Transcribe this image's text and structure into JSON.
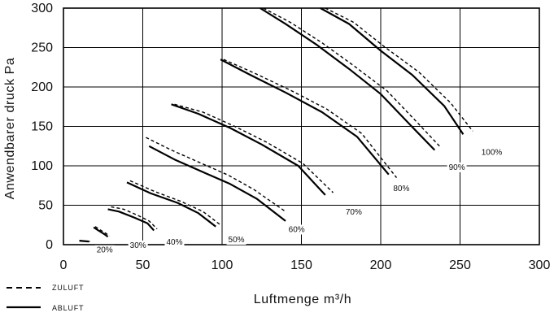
{
  "chart_data": {
    "type": "line",
    "xlabel": "Luftmenge m³/h",
    "ylabel": "Anwendbarer druck Pa",
    "xlim": [
      0,
      300
    ],
    "ylim": [
      0,
      300
    ],
    "xticks": [
      "0",
      "50",
      "100",
      "150",
      "200",
      "250",
      "300"
    ],
    "yticks": [
      "0",
      "50",
      "100",
      "150",
      "200",
      "250",
      "300"
    ],
    "grid": true,
    "legend_position": "bottom-left",
    "legend": [
      {
        "label": "ZULUFT",
        "style": "dashed"
      },
      {
        "label": "ABLUFT",
        "style": "solid"
      }
    ],
    "curves": [
      {
        "label": "20%",
        "label_pos": [
          26,
          -10
        ],
        "abluft": [
          [
            10,
            5
          ],
          [
            16,
            4
          ]
        ],
        "zuluft": [
          [
            11,
            5
          ],
          [
            17,
            4
          ]
        ]
      },
      {
        "label": "",
        "label_pos": null,
        "abluft": [
          [
            19,
            22
          ],
          [
            22,
            18
          ],
          [
            26,
            13
          ],
          [
            28,
            10
          ]
        ],
        "zuluft": [
          [
            20,
            23
          ],
          [
            23,
            19
          ],
          [
            27,
            14
          ],
          [
            29,
            11
          ]
        ]
      },
      {
        "label": "30%",
        "label_pos": [
          47,
          -4
        ],
        "abluft": [
          [
            28,
            45
          ],
          [
            35,
            42
          ],
          [
            45,
            34
          ],
          [
            53,
            27
          ],
          [
            57,
            18
          ]
        ],
        "zuluft": [
          [
            30,
            48
          ],
          [
            38,
            45
          ],
          [
            47,
            37
          ],
          [
            54,
            30
          ],
          [
            59,
            20
          ]
        ]
      },
      {
        "label": "40%",
        "label_pos": [
          70,
          0
        ],
        "abluft": [
          [
            40,
            79
          ],
          [
            55,
            65
          ],
          [
            72,
            53
          ],
          [
            85,
            40
          ],
          [
            96,
            23
          ]
        ],
        "zuluft": [
          [
            42,
            81
          ],
          [
            58,
            67
          ],
          [
            74,
            55
          ],
          [
            88,
            42
          ],
          [
            99,
            25
          ]
        ]
      },
      {
        "label": "50%",
        "label_pos": [
          109,
          3
        ],
        "abluft": [
          [
            54,
            125
          ],
          [
            70,
            108
          ],
          [
            88,
            92
          ],
          [
            105,
            77
          ],
          [
            122,
            58
          ],
          [
            140,
            30
          ]
        ],
        "zuluft": [
          [
            52,
            136
          ],
          [
            68,
            120
          ],
          [
            86,
            104
          ],
          [
            104,
            88
          ],
          [
            120,
            70
          ],
          [
            140,
            42
          ]
        ]
      },
      {
        "label": "60%",
        "label_pos": [
          147,
          16
        ],
        "abluft": [
          [
            68,
            178
          ],
          [
            85,
            166
          ],
          [
            105,
            148
          ],
          [
            125,
            127
          ],
          [
            148,
            100
          ],
          [
            165,
            63
          ]
        ],
        "zuluft": [
          [
            70,
            178
          ],
          [
            88,
            168
          ],
          [
            108,
            150
          ],
          [
            128,
            130
          ],
          [
            151,
            103
          ],
          [
            170,
            66
          ]
        ]
      },
      {
        "label": "70%",
        "label_pos": [
          183,
          38
        ],
        "abluft": [
          [
            99,
            235
          ],
          [
            118,
            215
          ],
          [
            140,
            193
          ],
          [
            163,
            168
          ],
          [
            185,
            137
          ],
          [
            205,
            89
          ]
        ],
        "zuluft": [
          [
            101,
            235
          ],
          [
            121,
            217
          ],
          [
            143,
            196
          ],
          [
            166,
            172
          ],
          [
            188,
            141
          ],
          [
            210,
            85
          ]
        ]
      },
      {
        "label": "80%",
        "label_pos": [
          213,
          68
        ],
        "abluft": [
          [
            124,
            300
          ],
          [
            140,
            280
          ],
          [
            160,
            253
          ],
          [
            180,
            223
          ],
          [
            200,
            191
          ],
          [
            219,
            151
          ],
          [
            234,
            120
          ]
        ],
        "zuluft": [
          [
            126,
            300
          ],
          [
            143,
            282
          ],
          [
            163,
            256
          ],
          [
            183,
            227
          ],
          [
            204,
            195
          ],
          [
            223,
            155
          ],
          [
            238,
            123
          ]
        ]
      },
      {
        "label": "90%",
        "label_pos": [
          248,
          95
        ],
        "abluft": [
          [
            162,
            300
          ],
          [
            180,
            280
          ],
          [
            200,
            246
          ],
          [
            220,
            215
          ],
          [
            240,
            176
          ],
          [
            252,
            140
          ]
        ],
        "zuluft": [
          [
            165,
            300
          ],
          [
            183,
            282
          ],
          [
            203,
            250
          ],
          [
            224,
            219
          ],
          [
            244,
            180
          ],
          [
            258,
            144
          ]
        ]
      },
      {
        "label": "100%",
        "label_pos": [
          270,
          114
        ],
        "abluft": [],
        "zuluft": []
      }
    ]
  }
}
